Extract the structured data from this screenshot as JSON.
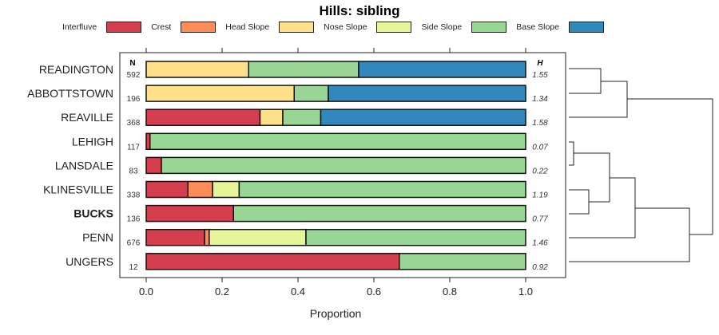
{
  "chart_data": {
    "type": "bar",
    "orientation": "horizontal-stacked",
    "title": "Hills: sibling",
    "xlabel": "Proportion",
    "xlim": [
      0,
      1
    ],
    "xticks": [
      "0.0",
      "0.2",
      "0.4",
      "0.6",
      "0.8",
      "1.0"
    ],
    "xtick_values": [
      0,
      0.2,
      0.4,
      0.6,
      0.8,
      1.0
    ],
    "n_header": "N",
    "h_header": "H",
    "legend_position": "top",
    "legend": [
      {
        "name": "Interfluve",
        "color": "#D53E4F"
      },
      {
        "name": "Crest",
        "color": "#FC8D59"
      },
      {
        "name": "Head Slope",
        "color": "#FEE08B"
      },
      {
        "name": "Nose Slope",
        "color": "#E6F598"
      },
      {
        "name": "Side Slope",
        "color": "#99D594"
      },
      {
        "name": "Base Slope",
        "color": "#3288BD"
      }
    ],
    "categories": [
      "READINGTON",
      "ABBOTTSTOWN",
      "REAVILLE",
      "LEHIGH",
      "LANSDALE",
      "KLINESVILLE",
      "BUCKS",
      "PENN",
      "UNGERS"
    ],
    "bold_category": "BUCKS",
    "n": [
      "592",
      "196",
      "368",
      "117",
      "83",
      "338",
      "136",
      "676",
      "12"
    ],
    "h": [
      "1.55",
      "1.34",
      "1.58",
      "0.07",
      "0.22",
      "1.19",
      "0.77",
      "1.46",
      "0.92"
    ],
    "series": [
      {
        "name": "Interfluve",
        "values": [
          0,
          0,
          0.3,
          0.01,
          0.04,
          0.11,
          0.23,
          0.154,
          0.667
        ]
      },
      {
        "name": "Crest",
        "values": [
          0,
          0,
          0,
          0,
          0,
          0.065,
          0,
          0.012,
          0
        ]
      },
      {
        "name": "Head Slope",
        "values": [
          0.27,
          0.39,
          0.06,
          0,
          0,
          0,
          0,
          0,
          0
        ]
      },
      {
        "name": "Nose Slope",
        "values": [
          0,
          0,
          0,
          0,
          0,
          0.07,
          0,
          0.255,
          0
        ]
      },
      {
        "name": "Side Slope",
        "values": [
          0.29,
          0.09,
          0.1,
          0.99,
          0.96,
          0.755,
          0.77,
          0.579,
          0.333
        ]
      },
      {
        "name": "Base Slope",
        "values": [
          0.44,
          0.52,
          0.54,
          0,
          0,
          0,
          0,
          0,
          0
        ]
      }
    ]
  }
}
